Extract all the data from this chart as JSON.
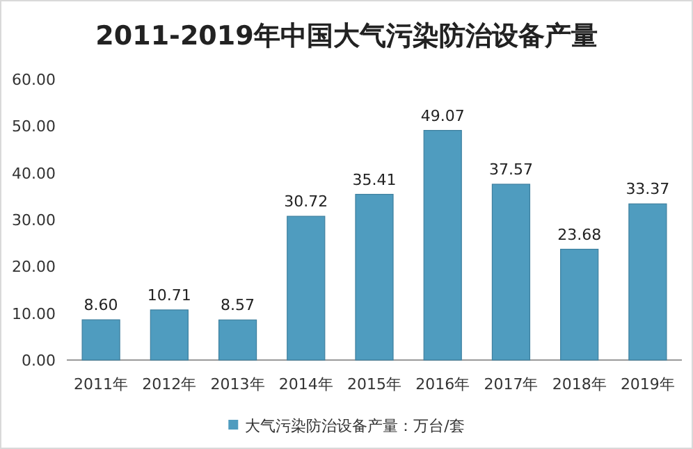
{
  "chart_data": {
    "type": "bar",
    "title": "2011-2019年中国大气污染防治设备产量",
    "categories": [
      "2011年",
      "2012年",
      "2013年",
      "2014年",
      "2015年",
      "2016年",
      "2017年",
      "2018年",
      "2019年"
    ],
    "series": [
      {
        "name": "大气污染防治设备产量：万台/套",
        "color": "#4f9cbf",
        "values": [
          8.6,
          10.71,
          8.57,
          30.72,
          35.41,
          49.07,
          37.57,
          23.68,
          33.37
        ],
        "value_labels": [
          "8.60",
          "10.71",
          "8.57",
          "30.72",
          "35.41",
          "49.07",
          "37.57",
          "23.68",
          "33.37"
        ]
      }
    ],
    "ylim": [
      0,
      60
    ],
    "yticks": [
      {
        "value": 0,
        "label": "0.00"
      },
      {
        "value": 10,
        "label": "10.00"
      },
      {
        "value": 20,
        "label": "20.00"
      },
      {
        "value": 30,
        "label": "30.00"
      },
      {
        "value": 40,
        "label": "40.00"
      },
      {
        "value": 50,
        "label": "50.00"
      },
      {
        "value": 60,
        "label": "60.00"
      }
    ],
    "legend": "bottom",
    "grid": false
  }
}
